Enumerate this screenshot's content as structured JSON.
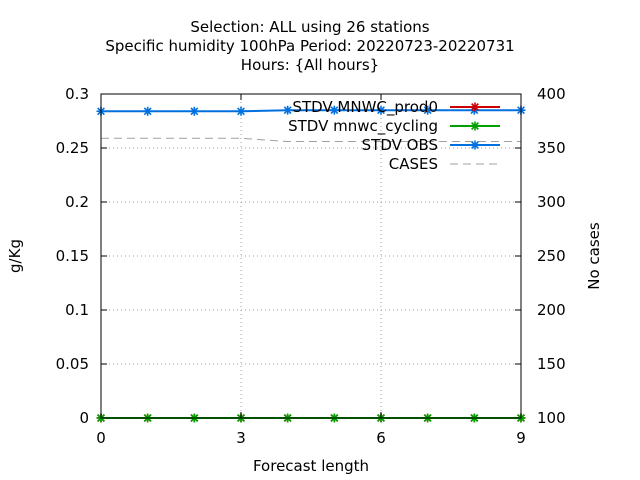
{
  "chart_data": {
    "type": "line",
    "title_lines": [
      "Selection: ALL using    26 stations",
      "Specific humidity 100hPa   Period: 20220723-20220731",
      "Hours: {All hours}"
    ],
    "xlabel": "Forecast length",
    "ylabel": "g/Kg",
    "y2label": "No cases",
    "xlim": [
      0,
      9
    ],
    "ylim": [
      0,
      0.3
    ],
    "y2lim": [
      100,
      400
    ],
    "xticks": [
      0,
      3,
      6,
      9
    ],
    "yticks": [
      0,
      0.05,
      0.1,
      0.15,
      0.2,
      0.25,
      0.3
    ],
    "y2ticks": [
      100,
      150,
      200,
      250,
      300,
      350,
      400
    ],
    "grid": true,
    "legend_position": "top-right",
    "x": [
      0,
      1,
      2,
      3,
      4,
      5,
      6,
      7,
      8,
      9
    ],
    "series": [
      {
        "name": "STDV MNWC_prod0",
        "color": "#cc0000",
        "axis": "y",
        "values": [
          0,
          0,
          0,
          0,
          0,
          0,
          0,
          0,
          0,
          0
        ]
      },
      {
        "name": "STDV mnwc_cycling",
        "color": "#00a000",
        "axis": "y",
        "values": [
          0,
          0,
          0,
          0,
          0,
          0,
          0,
          0,
          0,
          0
        ]
      },
      {
        "name": "STDV OBS",
        "color": "#0070e0",
        "axis": "y",
        "values": [
          0.284,
          0.284,
          0.284,
          0.284,
          0.285,
          0.285,
          0.285,
          0.285,
          0.285,
          0.285
        ]
      },
      {
        "name": "CASES",
        "color": "#a0a0a0",
        "axis": "y2",
        "values": [
          359,
          359,
          359,
          359,
          356,
          356,
          356,
          356,
          356,
          356
        ]
      }
    ]
  }
}
